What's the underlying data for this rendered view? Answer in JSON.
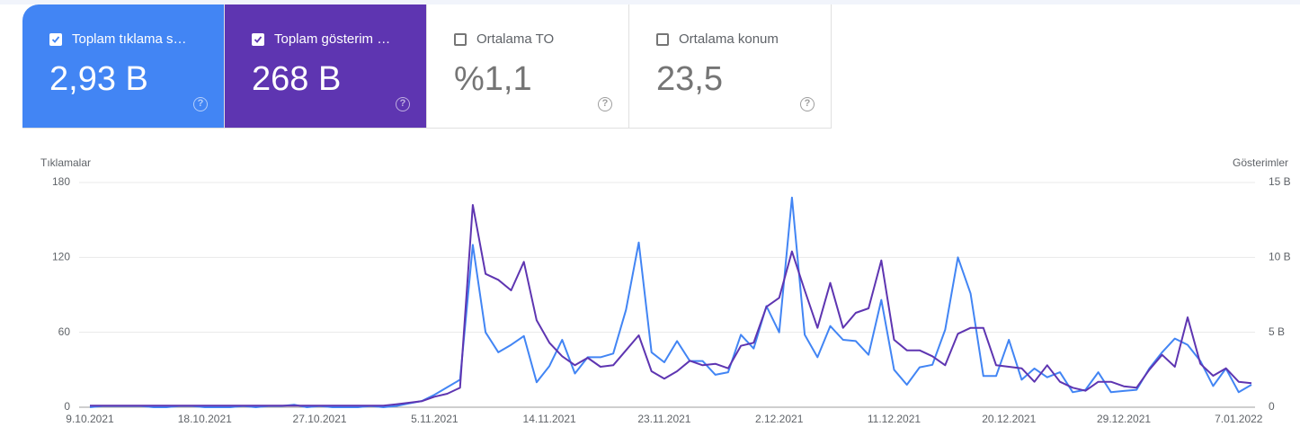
{
  "cards": [
    {
      "label": "Toplam tıklama s…",
      "value": "2,93 B",
      "checked": true,
      "color": "#4285f4"
    },
    {
      "label": "Toplam gösterim …",
      "value": "268 B",
      "checked": true,
      "color": "#5e35b1"
    },
    {
      "label": "Ortalama TO",
      "value": "%1,1",
      "checked": false,
      "color": "#ffffff"
    },
    {
      "label": "Ortalama konum",
      "value": "23,5",
      "checked": false,
      "color": "#ffffff"
    }
  ],
  "chart_data": {
    "type": "line",
    "y_label": "Tıklamalar",
    "y2_label": "Gösterimler",
    "categories": [
      "9.10.2021",
      null,
      null,
      null,
      null,
      null,
      null,
      null,
      null,
      "18.10.2021",
      null,
      null,
      null,
      null,
      null,
      null,
      null,
      null,
      "27.10.2021",
      null,
      null,
      null,
      null,
      null,
      null,
      null,
      null,
      "5.11.2021",
      null,
      null,
      null,
      null,
      null,
      null,
      null,
      null,
      "14.11.2021",
      null,
      null,
      null,
      null,
      null,
      null,
      null,
      null,
      "23.11.2021",
      null,
      null,
      null,
      null,
      null,
      null,
      null,
      null,
      "2.12.2021",
      null,
      null,
      null,
      null,
      null,
      null,
      null,
      null,
      "11.12.2021",
      null,
      null,
      null,
      null,
      null,
      null,
      null,
      null,
      "20.12.2021",
      null,
      null,
      null,
      null,
      null,
      null,
      null,
      null,
      "29.12.2021",
      null,
      null,
      null,
      null,
      null,
      null,
      null,
      null,
      "7.01.2022",
      null
    ],
    "series": [
      {
        "color": "#4285f4",
        "values": [
          0,
          1,
          1,
          1,
          1,
          0,
          0,
          1,
          1,
          0,
          0,
          0,
          1,
          0,
          1,
          1,
          2,
          0,
          1,
          0,
          0,
          0,
          1,
          0,
          1,
          3,
          5,
          10,
          16,
          22,
          130,
          60,
          44,
          50,
          57,
          20,
          33,
          54,
          27,
          40,
          40,
          43,
          78,
          132,
          44,
          36,
          53,
          37,
          37,
          26,
          28,
          58,
          47,
          81,
          60,
          168,
          58,
          40,
          65,
          54,
          53,
          42,
          86,
          30,
          18,
          32,
          34,
          62,
          120,
          91,
          25,
          25,
          54,
          22,
          31,
          24,
          28,
          12,
          14,
          28,
          12,
          13,
          14,
          31,
          44,
          55,
          50,
          37,
          17,
          31,
          12,
          18
        ]
      },
      {
        "color": "#5e35b1",
        "axis": "y2",
        "values": [
          0.1,
          0.1,
          0.1,
          0.1,
          0.1,
          0.1,
          0.1,
          0.1,
          0.1,
          0.1,
          0.1,
          0.1,
          0.1,
          0.1,
          0.1,
          0.1,
          0.1,
          0.1,
          0.1,
          0.1,
          0.1,
          0.1,
          0.1,
          0.1,
          0.2,
          0.3,
          0.4,
          0.7,
          0.9,
          1.3,
          13.5,
          8.9,
          8.5,
          7.8,
          9.7,
          5.8,
          4.3,
          3.4,
          2.8,
          3.3,
          2.7,
          2.8,
          3.8,
          4.8,
          2.4,
          1.9,
          2.4,
          3.1,
          2.8,
          2.9,
          2.6,
          4.1,
          4.3,
          6.7,
          7.3,
          10.4,
          7.8,
          5.3,
          8.3,
          5.3,
          6.3,
          6.6,
          9.8,
          4.5,
          3.8,
          3.8,
          3.4,
          2.8,
          4.9,
          5.3,
          5.3,
          2.8,
          2.7,
          2.6,
          1.7,
          2.8,
          1.7,
          1.3,
          1.1,
          1.7,
          1.7,
          1.4,
          1.3,
          2.5,
          3.5,
          2.7,
          6,
          2.9,
          2.1,
          2.6,
          1.7,
          1.6
        ]
      }
    ],
    "ylim": [
      0,
      180
    ],
    "yticks": [
      0,
      60,
      120,
      180
    ],
    "y2lim": [
      0,
      15
    ],
    "y2ticks": [
      0,
      {
        "value": 5,
        "label": "5 B"
      },
      {
        "value": 10,
        "label": "10 B"
      },
      {
        "value": 15,
        "label": "15 B"
      }
    ],
    "grid": true
  }
}
